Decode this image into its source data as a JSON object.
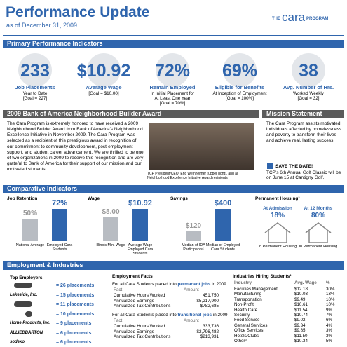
{
  "header": {
    "title": "Performance Update",
    "date": "as of December 31, 2009",
    "logo": {
      "prefix": "THE",
      "name": "cara",
      "suffix": "PROGRAM"
    }
  },
  "primary": {
    "title": "Primary Performance Indicators",
    "indicators": [
      {
        "value": "233",
        "label": "Job Placements",
        "lines": [
          "Year to Date",
          "[Goal = 227]"
        ]
      },
      {
        "value": "$10.92",
        "label": "Average Wage",
        "lines": [
          "[Goal = $10.00]"
        ]
      },
      {
        "value": "72%",
        "label": "Remain Employed",
        "lines": [
          "In Initial Placement for",
          "At Least One Year",
          "[Goal = 70%]"
        ]
      },
      {
        "value": "69%",
        "label": "Eligible for Benefits",
        "lines": [
          "At Inception of Employment",
          "[Goal = 100%]"
        ]
      },
      {
        "value": "38",
        "label": "Avg. Number of Hrs.",
        "lines": [
          "Worked Weekly",
          "[Goal = 32]"
        ]
      }
    ]
  },
  "award": {
    "title": "2009 Bank of America Neighborhood Builder Award",
    "text": "The Cara Program is extremely honored to have received a 2009 Neighborhood Builder Award from Bank of America's Neighborhood Excellence Initiative in November 2009. The Cara Program was selected as a recipient of this prestigious award in recognition of our commitment to community development, post-employment support, and student career advancement. We are thrilled to be one of two organizations in 2009 to receive this recognition and are very grateful to Bank of America for their support of our mission and our motivated students.",
    "caption": "TCP President/CEO, Eric Weinheimer (upper right), and all Neighborhood Excellence Initiative Award recipients"
  },
  "mission": {
    "title": "Mission Statement",
    "text": "The Cara Program assists motivated individuals affected by homelessness and poverty to transform their lives and achieve real, lasting success.",
    "save_title": "SAVE THE DATE!",
    "save_text": "TCP's 6th Annual Golf Classic will be on June 15 at Cantigny Golf."
  },
  "comparative": {
    "title": "Comparative Indicators",
    "panels": [
      {
        "title": "Job Retention",
        "categories": [
          "National Average",
          "Employed Cara Students"
        ],
        "values": [
          50,
          72
        ],
        "value_labels": [
          "50%",
          "72%"
        ]
      },
      {
        "title": "Wage",
        "categories": [
          "Illinois Min. Wage",
          "Average Wage Employed Cara Students"
        ],
        "values": [
          8.0,
          10.92
        ],
        "value_labels": [
          "$8.00",
          "$10.92"
        ]
      },
      {
        "title": "Savings",
        "categories": [
          "Median of IDA Participants¹",
          "Median of Employed Cara Students"
        ],
        "values": [
          120,
          400
        ],
        "value_labels": [
          "$120",
          "$400"
        ]
      }
    ],
    "housing": {
      "title": "Permanent Housing²",
      "items": [
        {
          "label": "At Admission",
          "value": "18%",
          "caption": "In Permanent Housing"
        },
        {
          "label": "At 12 Months",
          "value": "80%",
          "caption": "In Permanent Housing"
        }
      ]
    }
  },
  "employment": {
    "title": "Employment & Industries",
    "top_employers": {
      "title": "Top Employers",
      "rows": [
        {
          "logo": null,
          "placements": "= 26 placements"
        },
        {
          "logo": "Lakeside, Inc.",
          "placements": "= 15 placements"
        },
        {
          "logo": null,
          "placements": "= 11 placements"
        },
        {
          "logo": null,
          "placements": "= 10 placements"
        },
        {
          "logo": "Home Products, Inc.",
          "placements": "= 9 placements"
        },
        {
          "logo": "ALLIEDBARTON",
          "placements": "= 6 placements"
        },
        {
          "logo": "sodexo",
          "placements": "= 6 placements"
        }
      ]
    },
    "facts": {
      "title": "Employment Facts",
      "header": [
        "Fact",
        "Amount"
      ],
      "groups": [
        {
          "intro": "For all Cara Students placed into",
          "emph": "permanent jobs",
          "tail": "in 2009",
          "rows": [
            [
              "Cumulative Hours Worked",
              "451,750"
            ],
            [
              "Annualized Earnings",
              "$5,217,900"
            ],
            [
              "Annualized Tax Contributions",
              "$782,685"
            ]
          ]
        },
        {
          "intro": "For all Cara Students placed into",
          "emph": "transitional jobs",
          "tail": "in 2009",
          "rows": [
            [
              "Cumulative Hours Worked",
              "333,736"
            ],
            [
              "Annualized Earnings",
              "$2,796,482"
            ],
            [
              "Annualized Tax Contributions",
              "$213,931"
            ]
          ]
        }
      ]
    },
    "industries": {
      "title": "Industries Hiring Students²",
      "header": [
        "Industry",
        "Avg. Wage",
        "%"
      ],
      "rows": [
        [
          "Facilities Management",
          "$12.18",
          "30%"
        ],
        [
          "Manufacturing",
          "$10.03",
          "13%"
        ],
        [
          "Transportation",
          "$9.49",
          "10%"
        ],
        [
          "Non-Profit",
          "$10.61",
          "10%"
        ],
        [
          "Health Care",
          "$11.54",
          "9%"
        ],
        [
          "Security",
          "$10.74",
          "7%"
        ],
        [
          "Food Service",
          "$9.02",
          "6%"
        ],
        [
          "General Services",
          "$9.34",
          "4%"
        ],
        [
          "Office Services",
          "$9.85",
          "3%"
        ],
        [
          "Hotels/Clubs",
          "$11.50",
          "3%"
        ],
        [
          "Other³",
          "$10.34",
          "5%"
        ]
      ]
    }
  }
}
